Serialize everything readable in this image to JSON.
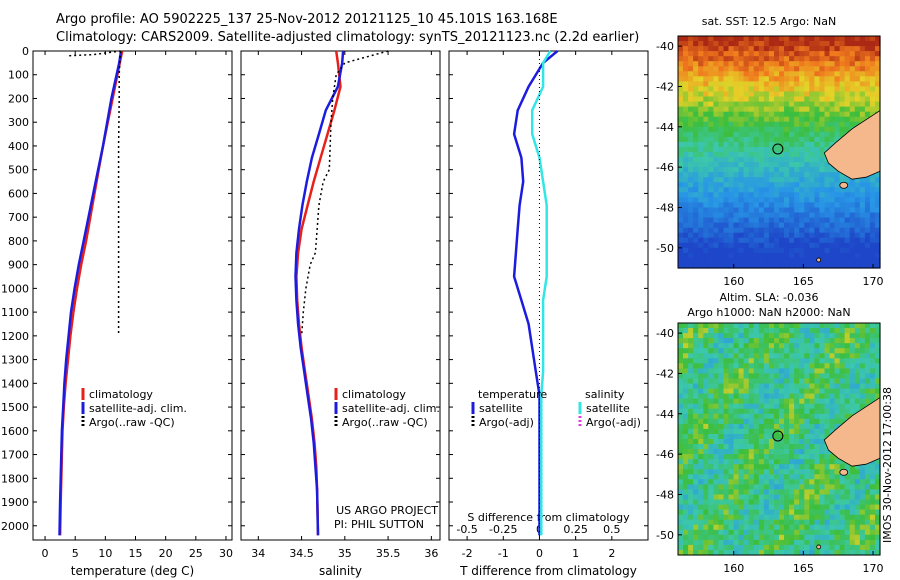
{
  "header": {
    "line1": "Argo profile: AO 5902225_137 25-Nov-2012 20121125_10 45.101S 163.168E",
    "line2": "Climatology: CARS2009. Satellite-adjusted climatology: synTS_20121123.nc (2.2d earlier)"
  },
  "colors": {
    "climatology": "#e8201a",
    "satellite": "#1c1ce0",
    "argo": "#000000",
    "satellite_salinity": "#33e6e6",
    "argo_adj_salinity": "#e040e0",
    "land": "#f5b88c"
  },
  "chart_data": [
    {
      "type": "line",
      "xlabel": "temperature (deg C)",
      "ylabel": "",
      "xlim": [
        -2,
        31
      ],
      "ylim": [
        2060,
        0
      ],
      "xticks": [
        "0",
        "5",
        "10",
        "15",
        "20",
        "25",
        "30"
      ],
      "yticks": [
        "0",
        "100",
        "200",
        "300",
        "400",
        "500",
        "600",
        "700",
        "800",
        "900",
        "1000",
        "1100",
        "1200",
        "1300",
        "1400",
        "1500",
        "1600",
        "1700",
        "1800",
        "1900",
        "2000"
      ],
      "legend": [
        "climatology",
        "satellite-adj. clim.",
        "Argo(..raw -QC)"
      ],
      "series": [
        {
          "name": "climatology",
          "style": "solid",
          "color": "#e8201a",
          "x": [
            12.8,
            12.4,
            11.2,
            10.4,
            9.6,
            8.9,
            8.2,
            7.5,
            6.8,
            6.0,
            5.3,
            4.7,
            4.2,
            3.8,
            3.4,
            3.1,
            2.9,
            2.8,
            2.7,
            2.6,
            2.5
          ],
          "y": [
            0,
            50,
            200,
            300,
            400,
            500,
            600,
            700,
            800,
            900,
            1000,
            1100,
            1200,
            1300,
            1400,
            1500,
            1600,
            1700,
            1800,
            1900,
            2040
          ]
        },
        {
          "name": "satellite-adj. clim.",
          "style": "solid",
          "color": "#1c1ce0",
          "x": [
            12.6,
            12.3,
            11.0,
            10.3,
            9.6,
            8.8,
            8.0,
            7.2,
            6.4,
            5.6,
            4.9,
            4.3,
            3.9,
            3.5,
            3.2,
            3.0,
            2.8,
            2.7,
            2.6,
            2.5,
            2.4
          ],
          "y": [
            0,
            50,
            200,
            300,
            400,
            500,
            600,
            700,
            800,
            900,
            1000,
            1100,
            1200,
            1300,
            1400,
            1500,
            1600,
            1700,
            1800,
            1900,
            2040
          ]
        },
        {
          "name": "Argo(..raw -QC)",
          "style": "dotted",
          "color": "#000000",
          "x": [
            12.5,
            12.4,
            12.3,
            12.3,
            12.2,
            12.2,
            12.2,
            12.2,
            12.2
          ],
          "y": [
            0,
            50,
            100,
            200,
            400,
            600,
            800,
            1000,
            1200
          ]
        },
        {
          "name": "Argo(..raw -QC) surface",
          "style": "dotted",
          "color": "#000000",
          "x": [
            4.0,
            8.0,
            12.5
          ],
          "y": [
            20,
            15,
            0
          ]
        }
      ]
    },
    {
      "type": "line",
      "xlabel": "salinity",
      "xlim": [
        33.8,
        36.1
      ],
      "ylim": [
        2060,
        0
      ],
      "xticks": [
        "34",
        "34.5",
        "35",
        "35.5",
        "36"
      ],
      "legend": [
        "climatology",
        "satellite-adj. clim.",
        "Argo(..raw -QC)"
      ],
      "annotations": [
        "US ARGO PROJECT",
        "PI: PHIL SUTTON"
      ],
      "series": [
        {
          "name": "climatology",
          "style": "solid",
          "color": "#e8201a",
          "x": [
            34.9,
            34.92,
            34.95,
            34.88,
            34.8,
            34.72,
            34.64,
            34.57,
            34.5,
            34.46,
            34.44,
            34.45,
            34.47,
            34.5,
            34.54,
            34.58,
            34.62,
            34.65,
            34.67,
            34.68,
            34.69
          ],
          "y": [
            0,
            50,
            150,
            250,
            350,
            450,
            550,
            650,
            750,
            850,
            950,
            1050,
            1150,
            1250,
            1350,
            1450,
            1550,
            1650,
            1750,
            1850,
            2040
          ]
        },
        {
          "name": "satellite-adj. clim.",
          "style": "solid",
          "color": "#1c1ce0",
          "x": [
            34.98,
            34.97,
            34.92,
            34.78,
            34.7,
            34.62,
            34.56,
            34.51,
            34.47,
            34.44,
            34.43,
            34.44,
            34.46,
            34.49,
            34.53,
            34.57,
            34.61,
            34.64,
            34.66,
            34.68,
            34.69
          ],
          "y": [
            0,
            50,
            150,
            250,
            350,
            450,
            550,
            650,
            750,
            850,
            950,
            1050,
            1150,
            1250,
            1350,
            1450,
            1550,
            1650,
            1750,
            1850,
            2040
          ]
        },
        {
          "name": "Argo(..raw -QC)",
          "style": "dotted",
          "color": "#000000",
          "x": [
            35.5,
            35.0,
            34.9,
            34.86,
            34.84,
            34.82,
            34.75,
            34.7,
            34.66,
            34.6,
            34.55,
            34.52,
            34.5
          ],
          "y": [
            0,
            50,
            100,
            200,
            300,
            500,
            550,
            650,
            850,
            900,
            1000,
            1100,
            1200
          ]
        }
      ]
    },
    {
      "type": "line",
      "xlabel": "T difference from climatology",
      "top_axis_label": "S difference from climatology",
      "xlim": [
        -2.5,
        3
      ],
      "ylim": [
        2060,
        0
      ],
      "xticks": [
        "-2",
        "-1",
        "0",
        "1",
        "2"
      ],
      "top_ticks": [
        "-0.5",
        "-0.25",
        "0",
        "0.25",
        "0.5"
      ],
      "legend": [
        "temperature",
        "satellite",
        "Argo(-adj)",
        "salinity",
        "satellite",
        "Argo(-adj)"
      ],
      "series": [
        {
          "name": "satellite",
          "style": "solid",
          "color": "#1c1ce0",
          "x": [
            0.5,
            0.1,
            -0.3,
            -0.6,
            -0.7,
            -0.5,
            -0.45,
            -0.55,
            -0.6,
            -0.65,
            -0.7,
            -0.5,
            -0.3,
            -0.2,
            -0.1,
            0,
            0,
            0,
            0,
            0,
            0
          ],
          "y": [
            0,
            50,
            150,
            250,
            350,
            450,
            550,
            650,
            750,
            850,
            950,
            1050,
            1150,
            1250,
            1350,
            1450,
            1550,
            1650,
            1750,
            1850,
            2040
          ]
        },
        {
          "name": "satellite",
          "style": "solid",
          "color": "#33e6e6",
          "x": [
            0.3,
            0.1,
            0.1,
            -0.2,
            -0.2,
            0,
            0.1,
            0.2,
            0.2,
            0.2,
            0.2,
            0.1,
            0.1,
            0.1,
            0.1,
            0.05,
            0.05,
            0.05,
            0.05,
            0.05,
            0.05
          ],
          "y": [
            0,
            50,
            150,
            250,
            350,
            450,
            550,
            650,
            750,
            850,
            950,
            1050,
            1150,
            1250,
            1350,
            1450,
            1550,
            1650,
            1750,
            1850,
            2040
          ]
        }
      ]
    }
  ],
  "maps": [
    {
      "title": "sat. SST: 12.5 Argo: NaN",
      "lat_ticks": [
        "-40",
        "-42",
        "-44",
        "-46",
        "-48",
        "-50"
      ],
      "lon_ticks": [
        "160",
        "165",
        "170"
      ]
    },
    {
      "title_line1": "Altim. SLA: -0.036",
      "title_line2": "Argo h1000: NaN h2000: NaN",
      "lat_ticks": [
        "-40",
        "-42",
        "-44",
        "-46",
        "-48",
        "-50"
      ],
      "lon_ticks": [
        "160",
        "165",
        "170"
      ]
    }
  ],
  "side_label": "IMOS 30-Nov-2012 17:00:38"
}
